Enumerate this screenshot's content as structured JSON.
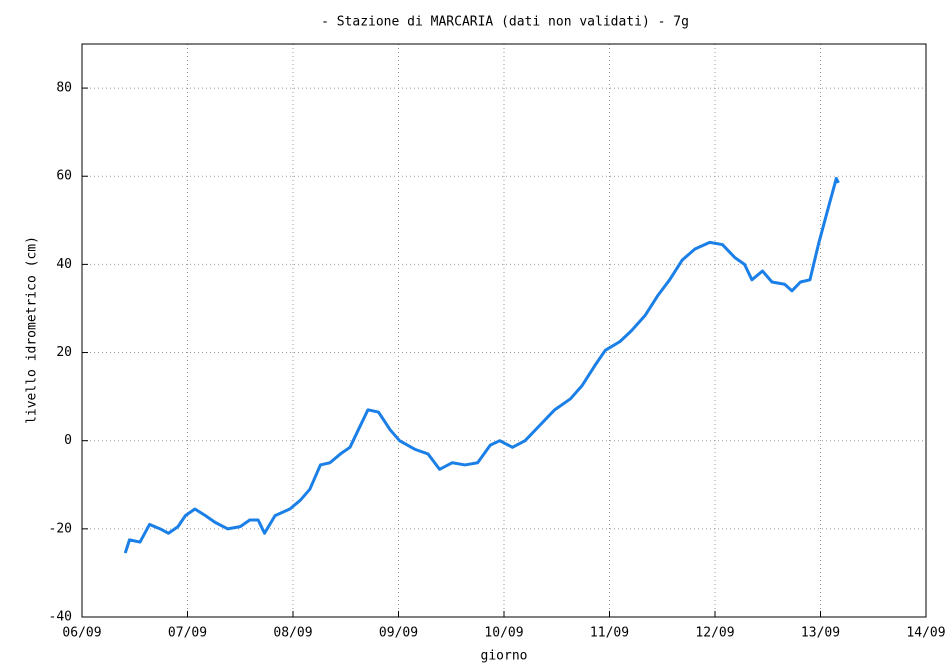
{
  "chart_data": {
    "type": "line",
    "title": "- Stazione di MARCARIA (dati non validati) - 7g",
    "x_label": "giorno",
    "y_label": "livello idrometrico (cm)",
    "xlim": [
      0,
      8
    ],
    "xticks": [
      {
        "value": 0,
        "label": "06/09"
      },
      {
        "value": 1,
        "label": "07/09"
      },
      {
        "value": 2,
        "label": "08/09"
      },
      {
        "value": 3,
        "label": "09/09"
      },
      {
        "value": 4,
        "label": "10/09"
      },
      {
        "value": 5,
        "label": "11/09"
      },
      {
        "value": 6,
        "label": "12/09"
      },
      {
        "value": 7,
        "label": "13/09"
      },
      {
        "value": 8,
        "label": "14/09"
      }
    ],
    "ylim": [
      -40,
      90
    ],
    "yticks": [
      -40,
      -20,
      0,
      20,
      40,
      60,
      80
    ],
    "grid": true,
    "x": [
      0.41,
      0.45,
      0.55,
      0.64,
      0.74,
      0.82,
      0.91,
      0.98,
      1.07,
      1.17,
      1.26,
      1.38,
      1.5,
      1.59,
      1.67,
      1.73,
      1.83,
      1.97,
      2.07,
      2.16,
      2.26,
      2.35,
      2.45,
      2.54,
      2.62,
      2.71,
      2.81,
      2.92,
      3.01,
      3.16,
      3.28,
      3.39,
      3.51,
      3.63,
      3.75,
      3.87,
      3.96,
      4.08,
      4.2,
      4.34,
      4.48,
      4.63,
      4.74,
      4.86,
      4.96,
      5.1,
      5.21,
      5.34,
      5.46,
      5.57,
      5.69,
      5.81,
      5.95,
      6.07,
      6.19,
      6.28,
      6.35,
      6.45,
      6.54,
      6.66,
      6.73,
      6.81,
      6.9,
      6.98,
      7.07,
      7.15,
      7.17
    ],
    "series": [
      {
        "color": "#1a7fe6",
        "values": [
          -25.5,
          -22.5,
          -23,
          -19,
          -20,
          -21,
          -19.5,
          -17,
          -15.5,
          -17,
          -18.5,
          -20,
          -19.5,
          -18,
          -18,
          -21,
          -17,
          -15.5,
          -13.5,
          -11,
          -5.5,
          -5,
          -3,
          -1.5,
          2.5,
          7,
          6.5,
          2.5,
          0,
          -2,
          -3,
          -6.5,
          -5,
          -5.5,
          -5,
          -1,
          0,
          -1.5,
          0,
          3.5,
          7,
          9.5,
          12.5,
          17,
          20.5,
          22.5,
          25,
          28.5,
          33,
          36.5,
          41,
          43.5,
          45,
          44.5,
          41.5,
          40,
          36.5,
          38.5,
          36,
          35.5,
          34,
          36,
          36.5,
          44.5,
          52.5,
          59.5,
          58.5
        ]
      }
    ]
  }
}
